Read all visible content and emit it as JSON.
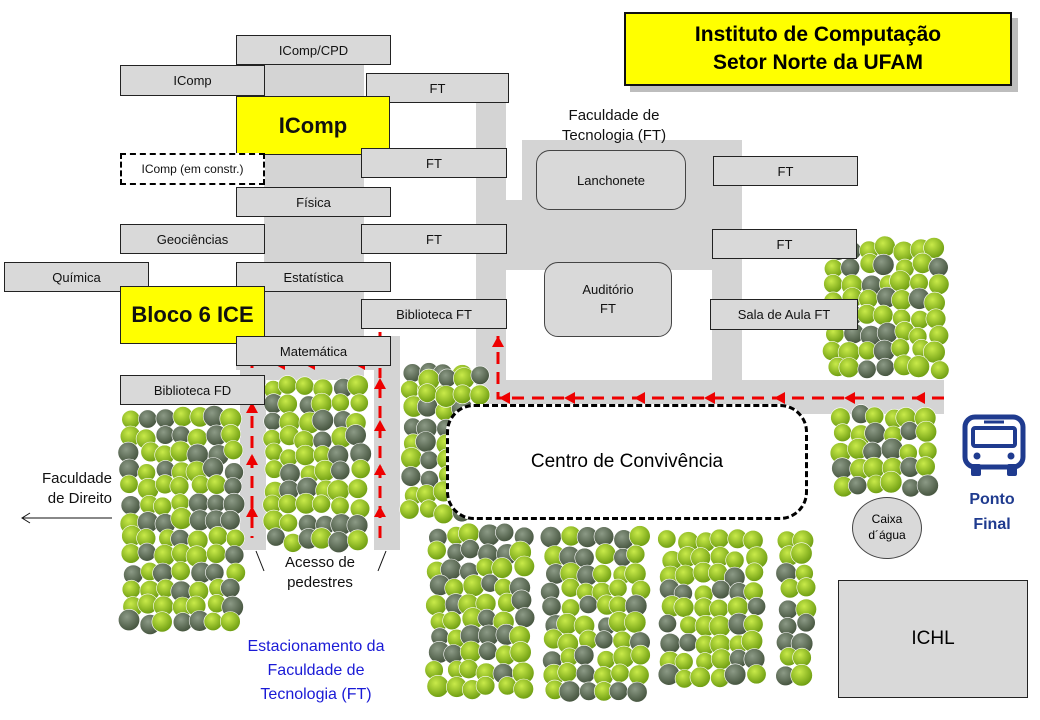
{
  "title": {
    "line1": "Instituto de Computação",
    "line2": "Setor Norte da UFAM"
  },
  "buildings": {
    "icomp_cpd": "IComp/CPD",
    "icomp_small": "IComp",
    "ft_top": "FT",
    "icomp_main": "IComp",
    "icomp_constr": "IComp (em constr.)",
    "ft_mid": "FT",
    "fisica": "Física",
    "geociencias": "Geociências",
    "ft_left3": "FT",
    "quimica": "Química",
    "estatistica": "Estatística",
    "bloco6": "Bloco 6 ICE",
    "biblioteca_ft": "Biblioteca FT",
    "matematica": "Matemática",
    "biblioteca_fd": "Biblioteca FD",
    "lanchonete": "Lanchonete",
    "auditorio_l1": "Auditório",
    "auditorio_l2": "FT",
    "ft_right1": "FT",
    "ft_right2": "FT",
    "sala_aula": "Sala de Aula FT",
    "centro_convivencia": "Centro de Convivência",
    "caixa_l1": "Caixa",
    "caixa_l2": "d´água",
    "ichl": "ICHL"
  },
  "labels": {
    "faculdade_tec_l1": "Faculdade de",
    "faculdade_tec_l2": "Tecnologia (FT)",
    "faculdade_direito_l1": "Faculdade",
    "faculdade_direito_l2": "de Direito",
    "acesso_l1": "Acesso de",
    "acesso_l2": "pedestres",
    "estac_l1": "Estacionamento da",
    "estac_l2": "Faculdade de",
    "estac_l3": "Tecnologia (FT)",
    "ponto_l1": "Ponto",
    "ponto_l2": "Final"
  },
  "colors": {
    "highlight": "#ffff00",
    "building": "#d9d9d9",
    "road": "#d4d4d4",
    "route": "#ee0000",
    "bus": "#1f3b8f",
    "estac_text": "#1a1ad6",
    "tree_light": "#8fc21a",
    "tree_dark": "#5b6b56"
  },
  "icons": {
    "bus": "bus-icon",
    "left_arrow": "arrow-left-icon"
  }
}
